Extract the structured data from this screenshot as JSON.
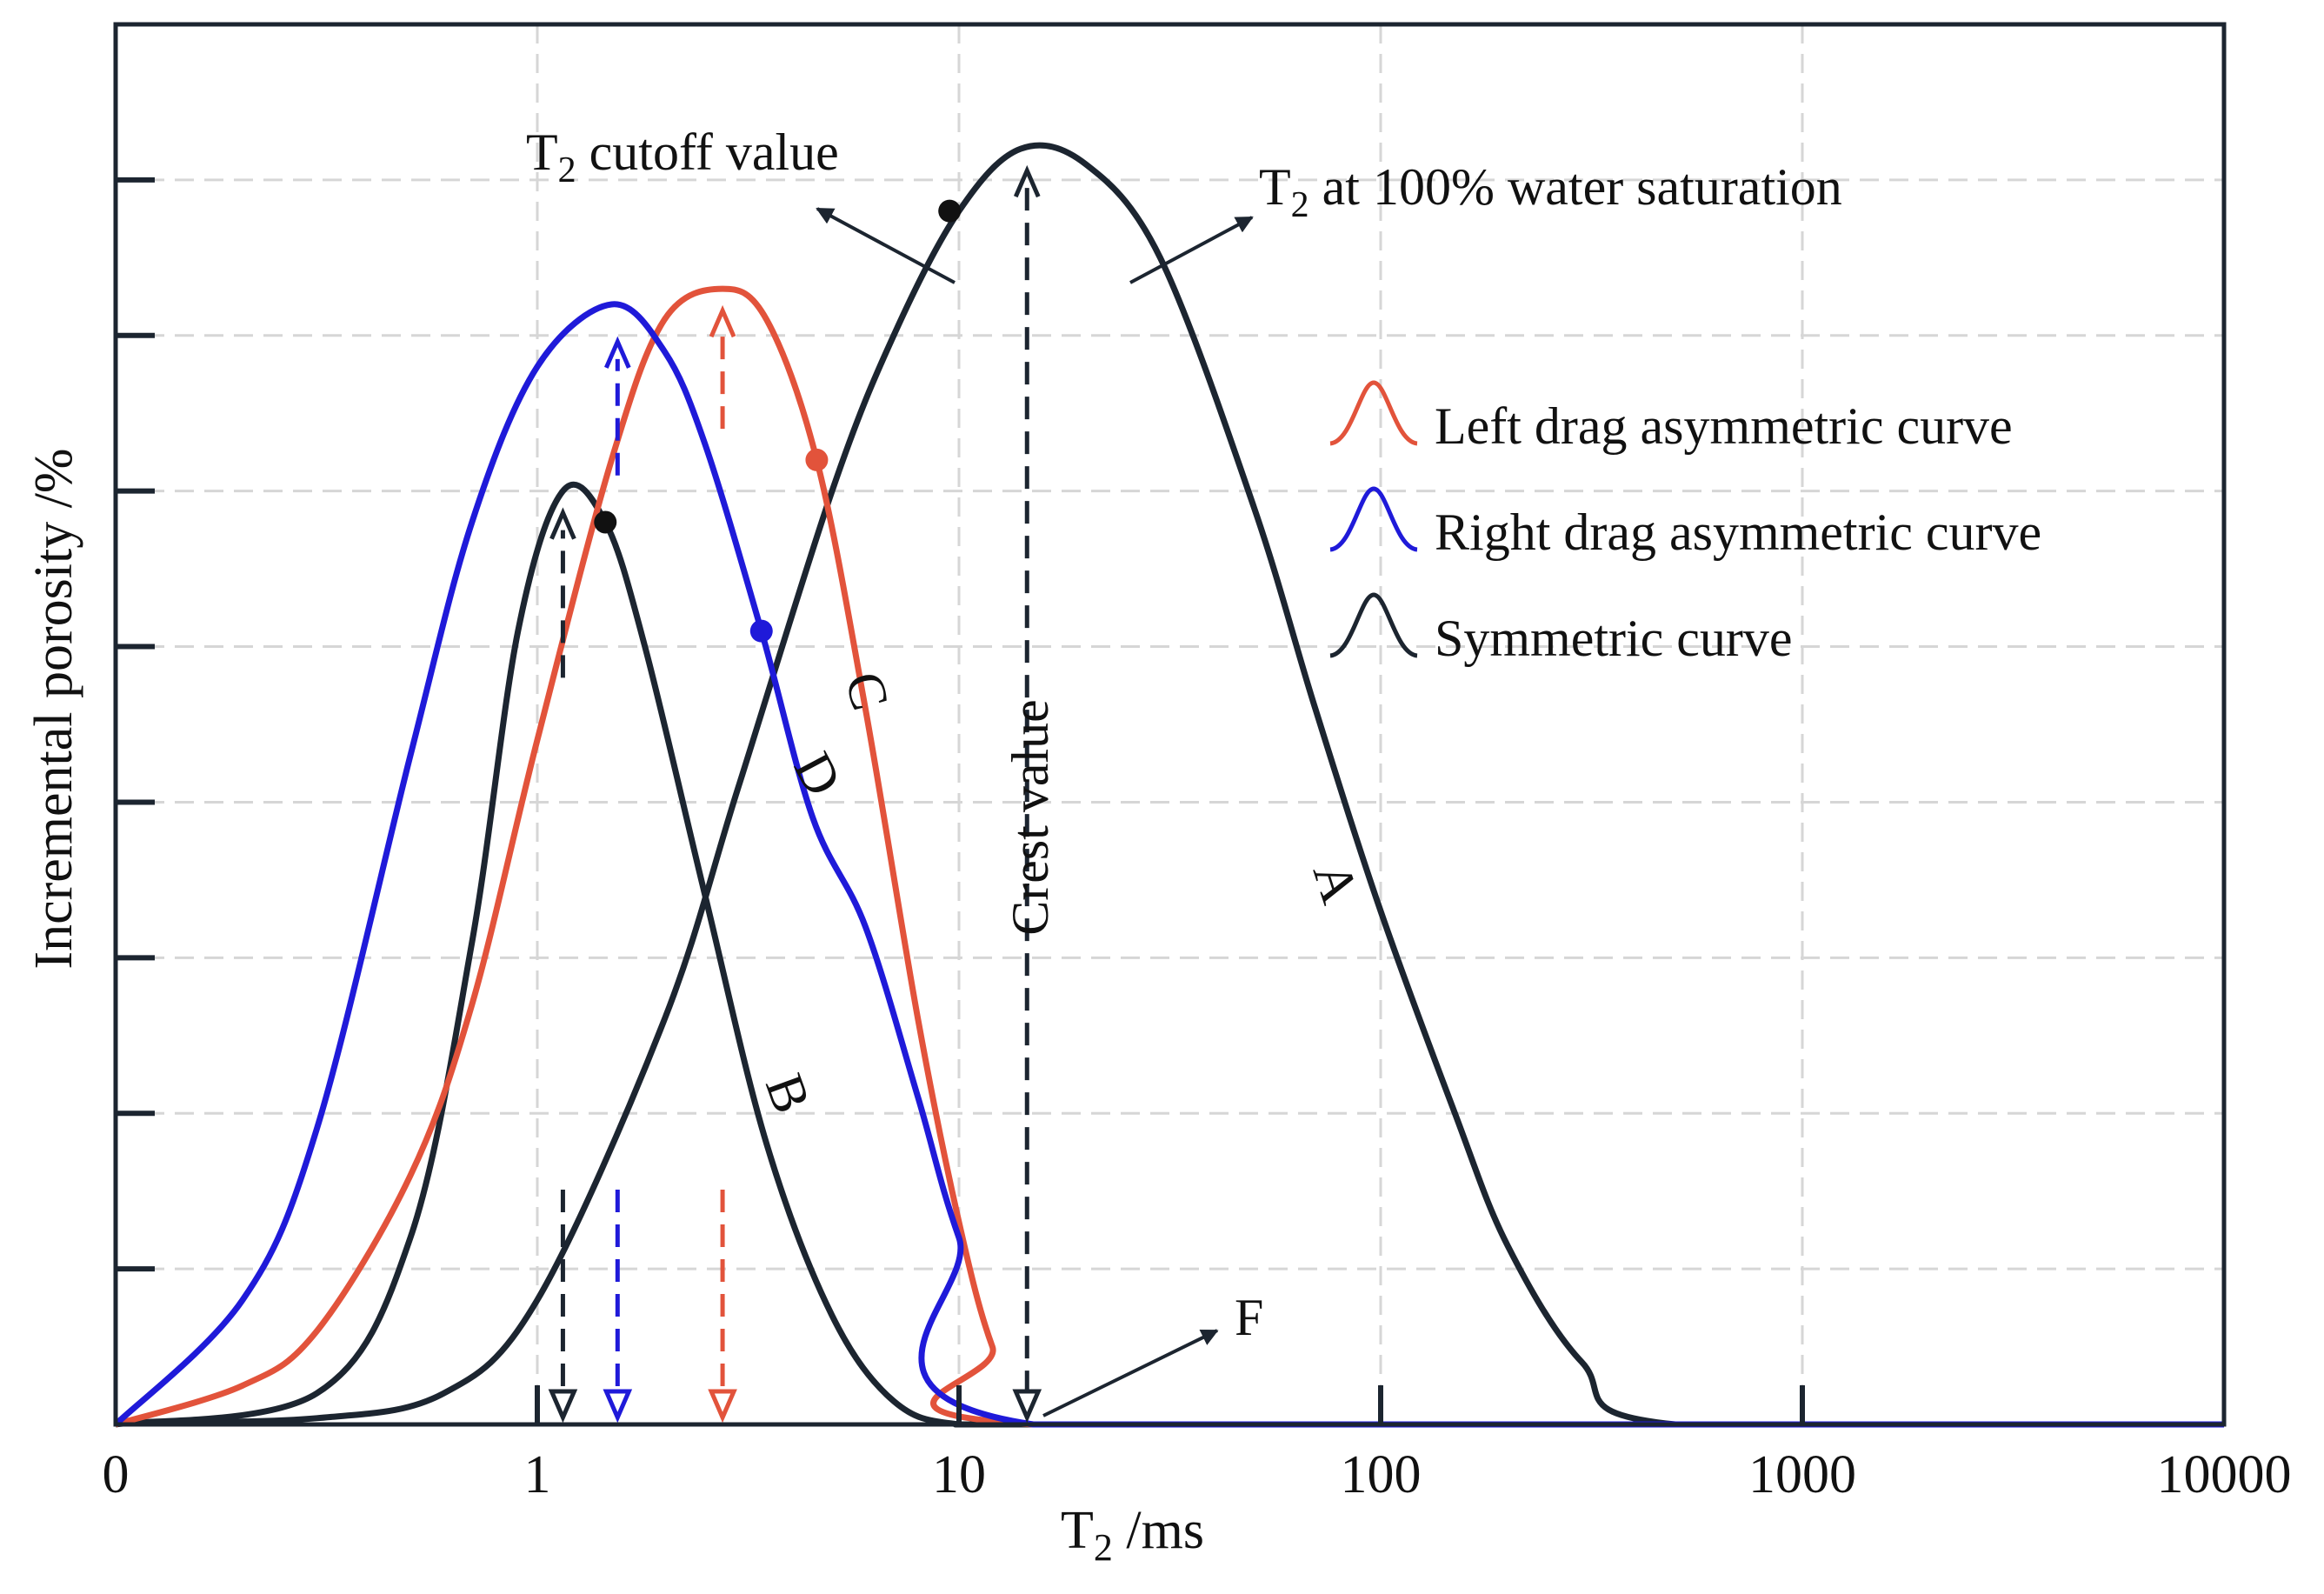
{
  "chart_data": {
    "type": "line",
    "title": "",
    "xlabel_main": "T",
    "xlabel_sub": "2",
    "xlabel_rest": " /ms",
    "ylabel": "Incremental porosity /%",
    "x_scale": "log",
    "x_ticks": [
      "0",
      "1",
      "10",
      "100",
      "1000",
      "10000"
    ],
    "x_tick_values": [
      0.1,
      1,
      10,
      100,
      1000,
      10000
    ],
    "xlim": [
      0.1,
      10000
    ],
    "ylim": [
      0,
      9
    ],
    "y_tick_count": 8,
    "grid": true,
    "legend_position": "right",
    "series": [
      {
        "name": "Symmetric curve",
        "curve": "A",
        "color": "#1c2530",
        "x": [
          0.1,
          0.3,
          0.6,
          1,
          2,
          3,
          5,
          7,
          10,
          14,
          20,
          30,
          50,
          70,
          100,
          150,
          200,
          300,
          500,
          10000
        ],
        "y": [
          0.01,
          0.04,
          0.2,
          0.8,
          2.6,
          4.1,
          6.0,
          7.0,
          7.8,
          8.2,
          8.1,
          7.5,
          5.9,
          4.6,
          3.3,
          2.0,
          1.15,
          0.4,
          0.0,
          0.0
        ]
      },
      {
        "name": "Symmetric curve",
        "curve": "B",
        "color": "#1c2530",
        "x": [
          0.1,
          0.3,
          0.5,
          0.7,
          0.9,
          1.15,
          1.45,
          1.8,
          2.5,
          3.5,
          5,
          7,
          10,
          20,
          10000
        ],
        "y": [
          0.0,
          0.2,
          1.2,
          3.1,
          5.1,
          6.0,
          5.8,
          5.0,
          3.4,
          1.8,
          0.7,
          0.15,
          0.0,
          0.0,
          0.0
        ]
      },
      {
        "name": "Left drag asymmetric curve",
        "curve": "C",
        "color": "#e2533b",
        "x": [
          0.1,
          0.2,
          0.3,
          0.5,
          0.7,
          1,
          1.5,
          2,
          2.75,
          3.5,
          4.6,
          6,
          8,
          10,
          12,
          15,
          10000
        ],
        "y": [
          0.0,
          0.25,
          0.6,
          1.6,
          2.7,
          4.4,
          6.2,
          7.1,
          7.3,
          7.1,
          6.2,
          4.6,
          2.6,
          1.3,
          0.5,
          0.0,
          0.0
        ]
      },
      {
        "name": "Right drag asymmetric curve",
        "curve": "D",
        "color": "#1f1ad9",
        "x": [
          0.1,
          0.2,
          0.3,
          0.5,
          0.7,
          1,
          1.5,
          2,
          2.5,
          3.4,
          4.5,
          6,
          8,
          10,
          15,
          10000
        ],
        "y": [
          0.0,
          0.8,
          1.9,
          4.3,
          5.8,
          6.8,
          7.2,
          6.9,
          6.3,
          5.1,
          3.9,
          3.2,
          2.1,
          1.2,
          0.0,
          0.0
        ]
      }
    ],
    "markers": [
      {
        "curve": "A",
        "x": 9.5,
        "y": 7.8,
        "color": "#111111"
      },
      {
        "curve": "B",
        "x": 1.45,
        "y": 5.8,
        "color": "#111111"
      },
      {
        "curve": "C",
        "x": 4.6,
        "y": 6.2,
        "color": "#e2533b"
      },
      {
        "curve": "D",
        "x": 3.4,
        "y": 5.1,
        "color": "#1f1ad9"
      }
    ],
    "peak_arrows": [
      {
        "x": 1.15,
        "color": "#1c2530",
        "top": 6.0,
        "upper_end": 4.8
      },
      {
        "x": 1.55,
        "color": "#1f1ad9",
        "top": 7.1,
        "upper_end": 6.1
      },
      {
        "x": 2.75,
        "color": "#e2533b",
        "top": 7.3,
        "upper_end": 6.4
      },
      {
        "x": 14.5,
        "color": "#1c2530",
        "top": 8.2,
        "upper_end": 0
      }
    ],
    "annotations": {
      "cutoff_main": "T",
      "cutoff_sub": "2",
      "cutoff_rest": " cutoff value",
      "saturation_main": "T",
      "saturation_sub": "2",
      "saturation_rest": " at 100% water saturation",
      "crest": "Crest value",
      "f_label": "F"
    },
    "curve_letters": [
      "A",
      "B",
      "C",
      "D"
    ]
  }
}
